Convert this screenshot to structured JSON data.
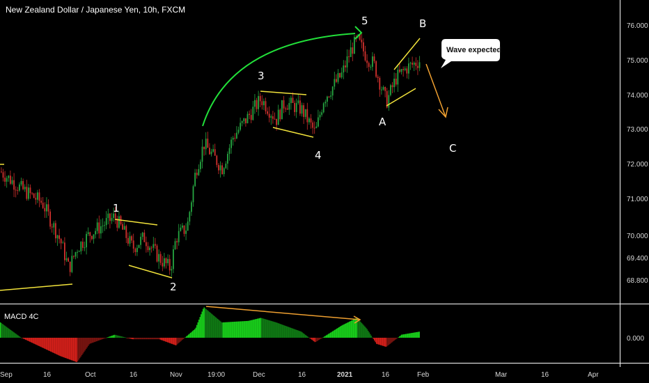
{
  "window": {
    "title": "New Zealand Dollar / Japanese Yen, 10h, FXCM"
  },
  "colors": {
    "background": "#000000",
    "bull_candle": "#26a641",
    "bear_candle": "#d0312d",
    "trendline": "#f2e33b",
    "arc_arrow": "#22e03a",
    "projection_arrow": "#f0a030",
    "divergence_line": "#f0a030",
    "macd_pos_strong": "#19d01b",
    "macd_pos_weak": "#0f7a14",
    "macd_neg_strong": "#d4201a",
    "macd_neg_weak": "#7a1410",
    "axis_text": "#d9d9d9",
    "separator": "#ffffff"
  },
  "annotations": {
    "wave_labels": [
      "1",
      "2",
      "3",
      "4",
      "5",
      "A",
      "B",
      "C"
    ],
    "callout": "Wave expected"
  },
  "macd_panel": {
    "title": "MACD 4C",
    "zero_label": "0.000"
  },
  "chart_data": {
    "type": "candlestick",
    "symbol": "New Zealand Dollar / Japanese Yen",
    "interval": "10h",
    "source": "FXCM",
    "ylim": [
      68.3,
      76.6
    ],
    "y_ticks": [
      "76.000",
      "75.000",
      "74.000",
      "73.000",
      "72.000",
      "71.000",
      "70.000",
      "69.400",
      "68.800"
    ],
    "x_ticks": [
      "Sep",
      "16",
      "Oct",
      "16",
      "Nov",
      "19:00",
      "Dec",
      "16",
      "2021",
      "16",
      "Feb",
      "Mar",
      "16",
      "Apr"
    ],
    "price_path": [
      [
        "Sep",
        71.8
      ],
      [
        "Sep 10",
        71.3
      ],
      [
        "Sep 16",
        70.9
      ],
      [
        "Sep 22",
        69.8
      ],
      [
        "Sep 25",
        69.0
      ],
      [
        "Sep 28",
        69.6
      ],
      [
        "Oct",
        70.0
      ],
      [
        "Oct 9",
        70.5
      ],
      [
        "Oct 16",
        69.6
      ],
      [
        "Oct 20",
        69.9
      ],
      [
        "Oct 26",
        69.3
      ],
      [
        "Oct 30",
        69.0
      ],
      [
        "Nov",
        69.9
      ],
      [
        "Nov 4",
        70.2
      ],
      [
        "Nov 6",
        71.8
      ],
      [
        "Nov 9",
        72.6
      ],
      [
        "Nov 16",
        71.9
      ],
      [
        "Nov 20",
        72.8
      ],
      [
        "Nov 26",
        73.4
      ],
      [
        "Dec",
        73.9
      ],
      [
        "Dec 7",
        73.3
      ],
      [
        "Dec 10",
        73.8
      ],
      [
        "Dec 16",
        73.6
      ],
      [
        "Dec 21",
        72.9
      ],
      [
        "Dec 24",
        73.9
      ],
      [
        "2021",
        74.6
      ],
      [
        "Jan 4",
        75.3
      ],
      [
        "Jan 6",
        75.6
      ],
      [
        "Jan 10",
        75.1
      ],
      [
        "Jan 13",
        74.9
      ],
      [
        "Jan 18",
        73.8
      ],
      [
        "Jan 22",
        74.5
      ],
      [
        "Jan 26",
        74.8
      ],
      [
        "Jan 30",
        75.0
      ]
    ],
    "wave_points": [
      {
        "label": "1",
        "date": "Oct 9",
        "price": 70.5
      },
      {
        "label": "2",
        "date": "Oct 30",
        "price": 68.9
      },
      {
        "label": "3",
        "date": "Dec",
        "price": 74.1
      },
      {
        "label": "4",
        "date": "Dec 21",
        "price": 72.8
      },
      {
        "label": "5",
        "date": "Jan 6",
        "price": 75.7
      },
      {
        "label": "A",
        "date": "Jan 18",
        "price": 73.7
      },
      {
        "label": "B",
        "date": "Jan 30",
        "price": 75.6
      },
      {
        "label": "C",
        "date": "Feb 9",
        "price": 72.4
      }
    ],
    "macd_histogram_path": [
      [
        "Sep",
        0.5
      ],
      [
        "Sep 10",
        0.0
      ],
      [
        "Sep 22",
        -0.6
      ],
      [
        "Sep 28",
        -0.8
      ],
      [
        "Oct",
        -0.2
      ],
      [
        "Oct 9",
        0.1
      ],
      [
        "Oct 16",
        -0.05
      ],
      [
        "Oct 26",
        -0.05
      ],
      [
        "Nov",
        -0.25
      ],
      [
        "Nov 6",
        0.3
      ],
      [
        "Nov 9",
        1.0
      ],
      [
        "Nov 16",
        0.5
      ],
      [
        "Nov 26",
        0.55
      ],
      [
        "Dec",
        0.65
      ],
      [
        "Dec 7",
        0.5
      ],
      [
        "Dec 16",
        0.2
      ],
      [
        "Dec 21",
        -0.15
      ],
      [
        "2021",
        0.4
      ],
      [
        "Jan 6",
        0.65
      ],
      [
        "Jan 10",
        0.3
      ],
      [
        "Jan 14",
        -0.2
      ],
      [
        "Jan 18",
        -0.3
      ],
      [
        "Jan 24",
        0.1
      ],
      [
        "Jan 30",
        0.2
      ]
    ]
  }
}
